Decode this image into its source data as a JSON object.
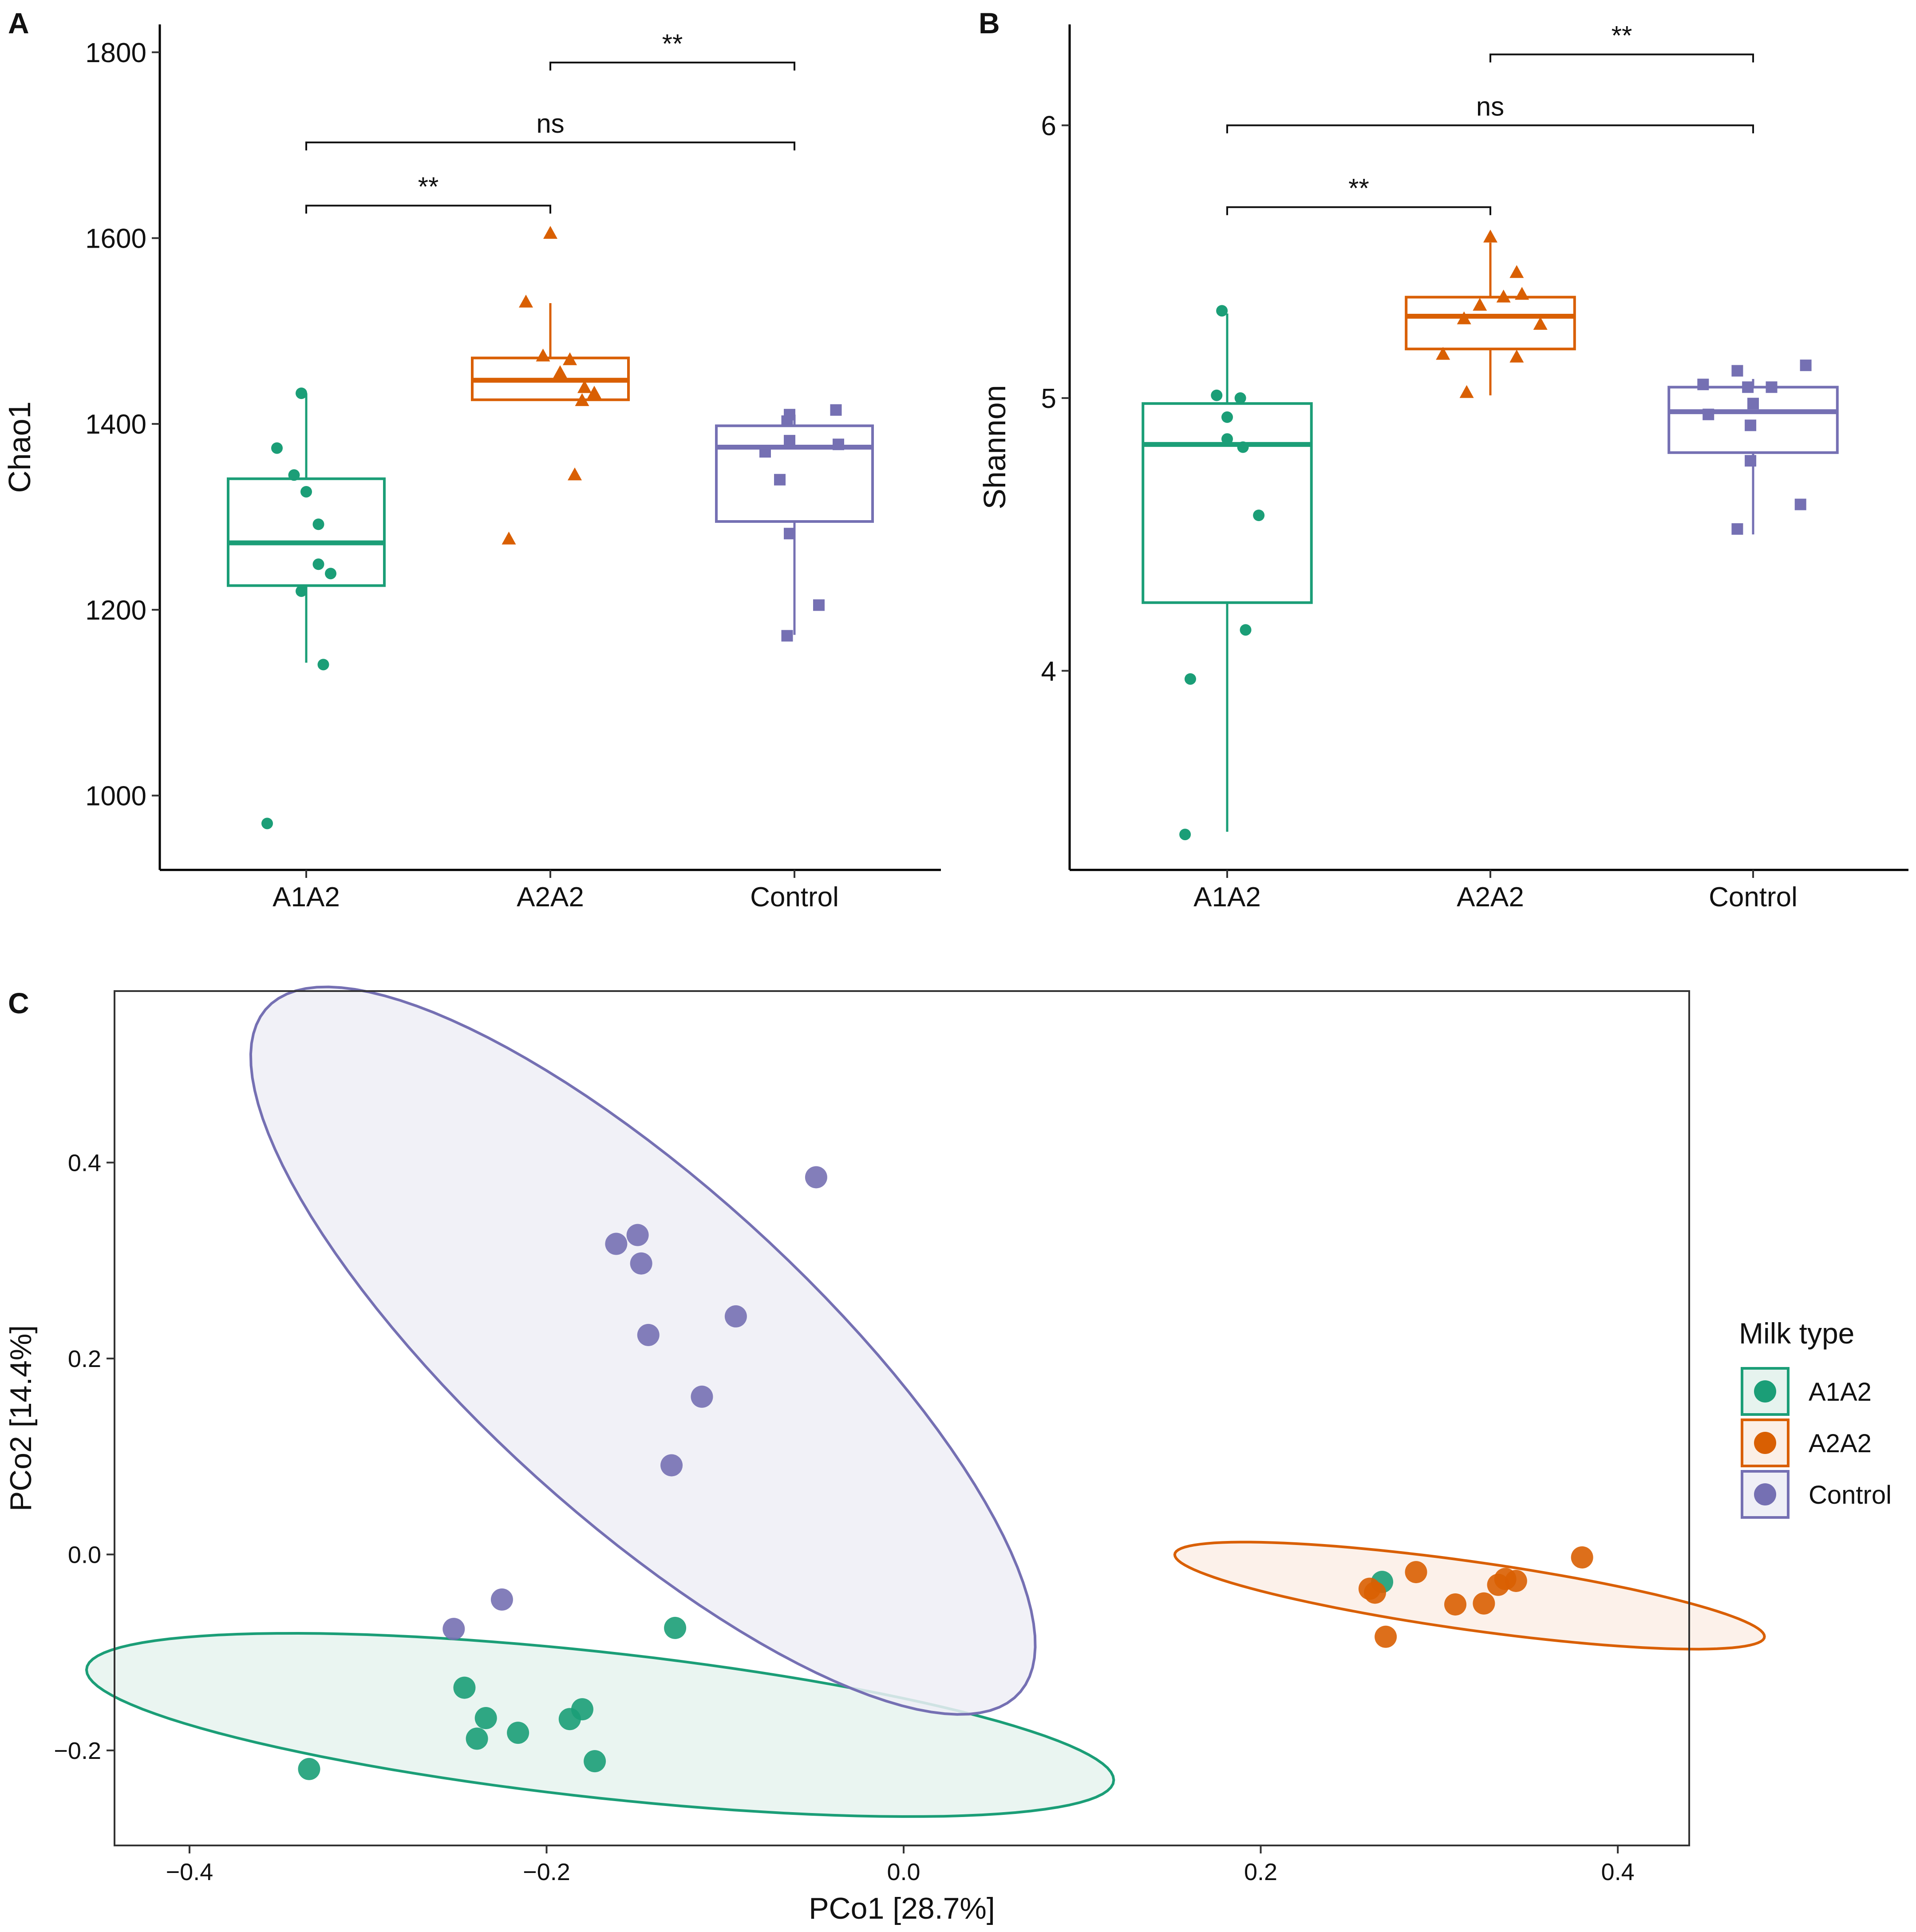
{
  "chart_data": [
    {
      "panel_label": "A",
      "type": "box",
      "ylabel": "Chao1",
      "categories": [
        "A1A2",
        "A2A2",
        "Control"
      ],
      "ylim": [
        920,
        1830
      ],
      "yticks": [
        "1000",
        "1200",
        "1400",
        "1600",
        "1800"
      ],
      "colors": [
        "#1b9e77",
        "#d95f02",
        "#7570b3"
      ],
      "markers": [
        "circle",
        "triangle",
        "square"
      ],
      "boxes": [
        {
          "q1": 1226,
          "median": 1272,
          "q3": 1341,
          "whisker_low": 1143,
          "whisker_high": 1433
        },
        {
          "q1": 1426,
          "median": 1447,
          "q3": 1471,
          "whisker_low": 1426,
          "whisker_high": 1530
        },
        {
          "q1": 1295,
          "median": 1375,
          "q3": 1398,
          "whisker_low": 1173,
          "whisker_high": 1410
        }
      ],
      "points": [
        [
          [
            -0.02,
            1433
          ],
          [
            -0.12,
            1374
          ],
          [
            -0.05,
            1345
          ],
          [
            0.0,
            1327
          ],
          [
            0.05,
            1292
          ],
          [
            0.05,
            1249
          ],
          [
            0.1,
            1239
          ],
          [
            -0.02,
            1220
          ],
          [
            0.07,
            1141
          ],
          [
            -0.16,
            970
          ]
        ],
        [
          [
            0.0,
            1605
          ],
          [
            -0.1,
            1531
          ],
          [
            -0.03,
            1473
          ],
          [
            0.08,
            1469
          ],
          [
            0.04,
            1455
          ],
          [
            0.14,
            1439
          ],
          [
            0.18,
            1433
          ],
          [
            0.13,
            1425
          ],
          [
            0.1,
            1345
          ],
          [
            -0.17,
            1276
          ]
        ],
        [
          [
            -0.02,
            1410
          ],
          [
            0.17,
            1415
          ],
          [
            -0.03,
            1403
          ],
          [
            -0.02,
            1382
          ],
          [
            0.18,
            1378
          ],
          [
            -0.12,
            1370
          ],
          [
            -0.06,
            1340
          ],
          [
            -0.02,
            1282
          ],
          [
            0.1,
            1205
          ],
          [
            -0.03,
            1172
          ]
        ]
      ],
      "comparisons": [
        {
          "from": "A1A2",
          "to": "A2A2",
          "label": "**",
          "y": 1635
        },
        {
          "from": "A1A2",
          "to": "Control",
          "label": "ns",
          "y": 1703
        },
        {
          "from": "A2A2",
          "to": "Control",
          "label": "**",
          "y": 1789
        }
      ]
    },
    {
      "panel_label": "B",
      "type": "box",
      "ylabel": "Shannon",
      "categories": [
        "A1A2",
        "A2A2",
        "Control"
      ],
      "ylim": [
        3.27,
        6.37
      ],
      "yticks": [
        "4",
        "5",
        "6"
      ],
      "colors": [
        "#1b9e77",
        "#d95f02",
        "#7570b3"
      ],
      "markers": [
        "circle",
        "triangle",
        "square"
      ],
      "boxes": [
        {
          "q1": 4.25,
          "median": 4.83,
          "q3": 4.98,
          "whisker_low": 3.41,
          "whisker_high": 5.31
        },
        {
          "q1": 5.18,
          "median": 5.3,
          "q3": 5.37,
          "whisker_low": 5.01,
          "whisker_high": 5.57
        },
        {
          "q1": 4.8,
          "median": 4.95,
          "q3": 5.04,
          "whisker_low": 4.5,
          "whisker_high": 5.07
        }
      ],
      "points": [
        [
          [
            -0.02,
            5.32
          ],
          [
            -0.04,
            5.01
          ],
          [
            0.05,
            5.0
          ],
          [
            0.0,
            4.93
          ],
          [
            0.0,
            4.85
          ],
          [
            0.06,
            4.82
          ],
          [
            0.12,
            4.57
          ],
          [
            0.07,
            4.15
          ],
          [
            -0.14,
            3.97
          ],
          [
            -0.16,
            3.4
          ]
        ],
        [
          [
            0.0,
            5.59
          ],
          [
            0.1,
            5.46
          ],
          [
            0.12,
            5.38
          ],
          [
            0.05,
            5.37
          ],
          [
            -0.04,
            5.34
          ],
          [
            -0.1,
            5.29
          ],
          [
            0.19,
            5.27
          ],
          [
            -0.18,
            5.16
          ],
          [
            0.1,
            5.15
          ],
          [
            -0.09,
            5.02
          ]
        ],
        [
          [
            0.2,
            5.12
          ],
          [
            -0.06,
            5.1
          ],
          [
            -0.19,
            5.05
          ],
          [
            0.07,
            5.04
          ],
          [
            -0.02,
            5.04
          ],
          [
            0.0,
            4.98
          ],
          [
            -0.17,
            4.94
          ],
          [
            -0.01,
            4.9
          ],
          [
            -0.01,
            4.77
          ],
          [
            0.18,
            4.61
          ],
          [
            -0.06,
            4.52
          ]
        ]
      ],
      "comparisons": [
        {
          "from": "A1A2",
          "to": "A2A2",
          "label": "**",
          "y": 5.7
        },
        {
          "from": "A1A2",
          "to": "Control",
          "label": "ns",
          "y": 6.0
        },
        {
          "from": "A2A2",
          "to": "Control",
          "label": "**",
          "y": 6.26
        }
      ]
    },
    {
      "panel_label": "C",
      "type": "scatter",
      "xlabel": "PCo1 [28.7%]",
      "ylabel": "PCo2 [14.4%]",
      "xlim": [
        -0.442,
        0.44
      ],
      "ylim": [
        -0.297,
        0.575
      ],
      "xticks": [
        "−0.4",
        "−0.2",
        "0.0",
        "0.2",
        "0.4"
      ],
      "yticks": [
        "−0.2",
        "0.0",
        "0.2",
        "0.4"
      ],
      "legend_title": "Milk type",
      "series": [
        {
          "name": "A1A2",
          "color": "#1b9e77",
          "fill": "#e6f3ee",
          "points": [
            [
              -0.128,
              -0.075
            ],
            [
              -0.246,
              -0.136
            ],
            [
              -0.234,
              -0.167
            ],
            [
              -0.18,
              -0.158
            ],
            [
              -0.187,
              -0.168
            ],
            [
              -0.216,
              -0.182
            ],
            [
              -0.239,
              -0.188
            ],
            [
              -0.173,
              -0.211
            ],
            [
              -0.333,
              -0.219
            ],
            [
              0.268,
              -0.028
            ]
          ],
          "ellipse": {
            "cx": -0.17,
            "cy": -0.174,
            "rx": 0.2935,
            "ry": 0.0733,
            "angle": -11.8
          }
        },
        {
          "name": "A2A2",
          "color": "#d95f02",
          "fill": "#fbefe6",
          "points": [
            [
              0.38,
              -0.003
            ],
            [
              0.287,
              -0.018
            ],
            [
              0.343,
              -0.027
            ],
            [
              0.337,
              -0.025
            ],
            [
              0.333,
              -0.031
            ],
            [
              0.261,
              -0.035
            ],
            [
              0.264,
              -0.039
            ],
            [
              0.309,
              -0.051
            ],
            [
              0.325,
              -0.05
            ],
            [
              0.27,
              -0.084
            ]
          ],
          "ellipse": {
            "cx": 0.317,
            "cy": -0.042,
            "rx": 0.1706,
            "ry": 0.0341,
            "angle": -14.8
          }
        },
        {
          "name": "Control",
          "color": "#7570b3",
          "fill": "#efeff6",
          "points": [
            [
              -0.049,
              0.385
            ],
            [
              -0.149,
              0.326
            ],
            [
              -0.161,
              0.317
            ],
            [
              -0.147,
              0.297
            ],
            [
              -0.094,
              0.243
            ],
            [
              -0.143,
              0.224
            ],
            [
              -0.113,
              0.161
            ],
            [
              -0.13,
              0.091
            ],
            [
              -0.225,
              -0.046
            ],
            [
              -0.252,
              -0.076
            ]
          ],
          "ellipse": {
            "cx": -0.146,
            "cy": 0.208,
            "rx": 0.4156,
            "ry": 0.1157,
            "angle": -62.1
          }
        }
      ]
    }
  ]
}
